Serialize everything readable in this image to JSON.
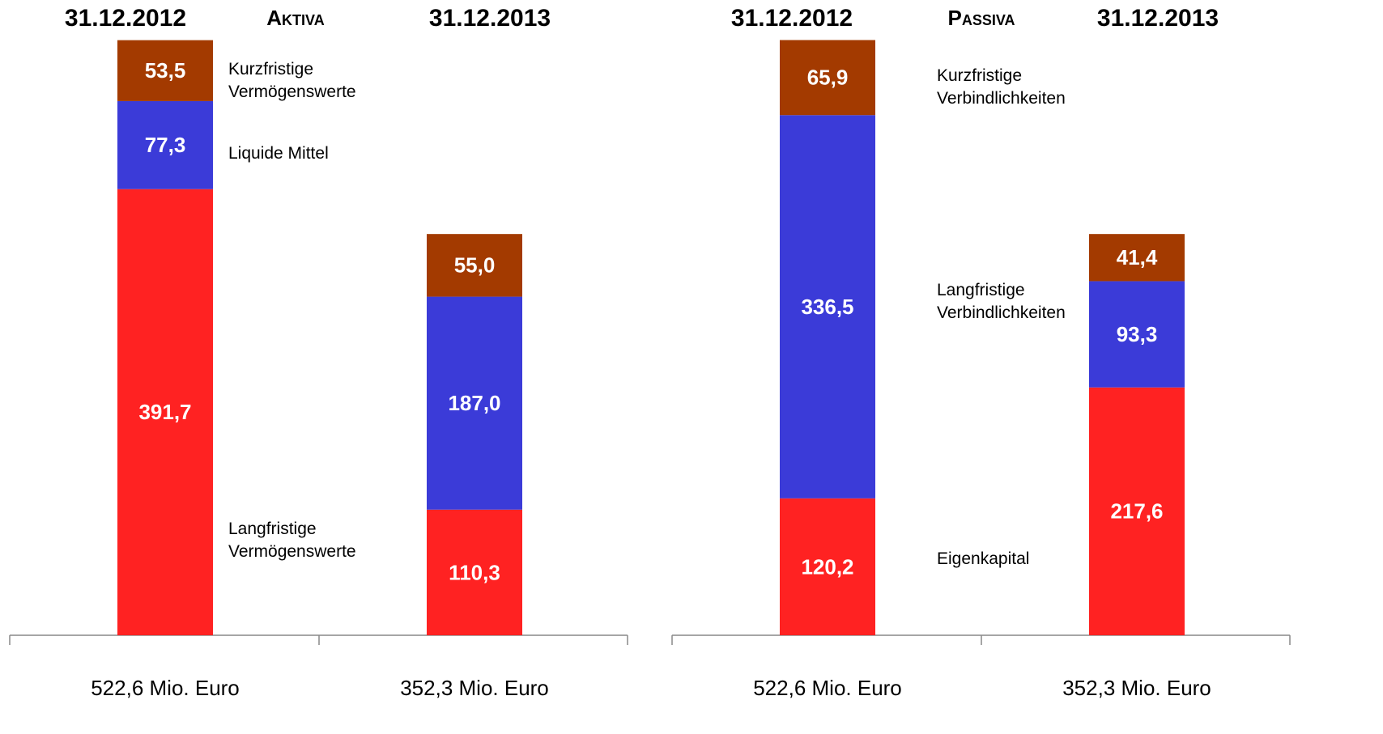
{
  "chart_data": [
    {
      "type": "stacked_bar",
      "title": "Aktiva",
      "categories": [
        "31.12.2012",
        "31.12.2013"
      ],
      "totals": [
        "522,6 Mio. Euro",
        "352,3 Mio. Euro"
      ],
      "ylim": [
        0,
        540
      ],
      "series": [
        {
          "name": "Langfristige Vermögenswerte",
          "color": "#ff2222",
          "values": [
            391.7,
            110.3
          ],
          "value_labels": [
            "391,7",
            "110,3"
          ]
        },
        {
          "name": "Liquide Mittel",
          "color": "#3b3bd8",
          "values": [
            77.3,
            187.0
          ],
          "value_labels": [
            "77,3",
            "187,0"
          ]
        },
        {
          "name": "Kurzfristige Vermögenswerte",
          "color": "#a33a00",
          "values": [
            53.5,
            55.0
          ],
          "value_labels": [
            "53,5",
            "55,0"
          ]
        }
      ]
    },
    {
      "type": "stacked_bar",
      "title": "Passiva",
      "categories": [
        "31.12.2012",
        "31.12.2013"
      ],
      "totals": [
        "522,6 Mio. Euro",
        "352,3 Mio. Euro"
      ],
      "ylim": [
        0,
        540
      ],
      "series": [
        {
          "name": "Eigenkapital",
          "color": "#ff2222",
          "values": [
            120.2,
            217.6
          ],
          "value_labels": [
            "120,2",
            "217,6"
          ]
        },
        {
          "name": "Langfristige Verbindlichkeiten",
          "color": "#3b3bd8",
          "values": [
            336.5,
            93.3
          ],
          "value_labels": [
            "336,5",
            "93,3"
          ]
        },
        {
          "name": "Kurzfristige Verbindlichkeiten",
          "color": "#a33a00",
          "values": [
            65.9,
            41.4
          ],
          "value_labels": [
            "65,9",
            "41,4"
          ]
        }
      ]
    }
  ]
}
